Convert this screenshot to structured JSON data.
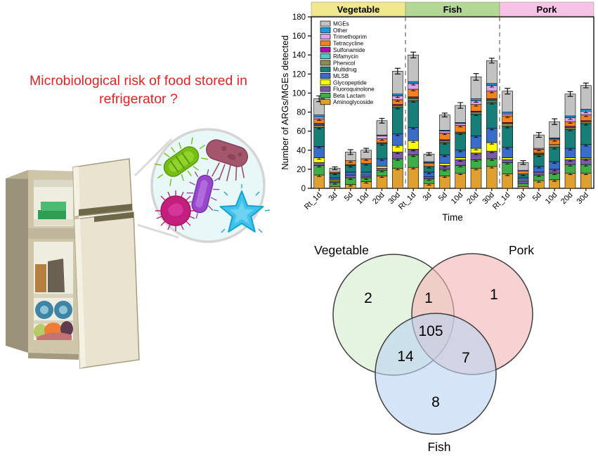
{
  "headline": {
    "text": "Microbiological risk of food stored in refrigerator ?",
    "color": "#E02424"
  },
  "illustration": {
    "items": [
      {
        "name": "refrigerator-illustration",
        "description": "two-door refrigerator with doors open showing stored food"
      },
      {
        "name": "magnifier-circle",
        "description": "zoom bubble showing microbes found in refrigerator"
      },
      {
        "name": "green-rod-bacterium"
      },
      {
        "name": "maroon-rod-bacterium"
      },
      {
        "name": "purple-rod-bacterium"
      },
      {
        "name": "magenta-coccus-bacterium"
      },
      {
        "name": "cyan-star-microbe"
      }
    ]
  },
  "chart_data": [
    {
      "type": "bar",
      "stacked": true,
      "title": "",
      "ylabel": "Number of ARGs/MGEs detected",
      "xlabel": "Time",
      "ylim": [
        0,
        180
      ],
      "yticks": [
        0,
        20,
        40,
        60,
        80,
        100,
        120,
        140,
        160,
        180
      ],
      "grid": false,
      "legend_position": "top-left-inside",
      "groups": [
        "Vegetable",
        "Fish",
        "Pork"
      ],
      "group_colors": [
        "#F0E88F",
        "#B3D895",
        "#F6C2E5"
      ],
      "categories": [
        "Rt_1d",
        "3d",
        "5d",
        "10d",
        "20d",
        "30d"
      ],
      "legend_order_top_to_bottom": [
        "MGEs",
        "Other",
        "Trimethoprim",
        "Tetracycline",
        "Sulfonamide",
        "Rifamycin",
        "Phenicol",
        "Multidrug",
        "MLSB",
        "Glycopeptide",
        "Fluoroquinolone",
        "Beta Lactam",
        "Aminoglycoside"
      ],
      "series": [
        {
          "name": "Aminoglycoside",
          "color": "#DFA02F",
          "values": {
            "Vegetable": [
              14,
              2,
              4,
              7,
              13,
              21
            ],
            "Fish": [
              22,
              5,
              13,
              16,
              21,
              23
            ],
            "Pork": [
              15,
              2,
              8,
              9,
              16,
              16
            ]
          }
        },
        {
          "name": "Beta Lactam",
          "color": "#3FAE49",
          "values": {
            "Vegetable": [
              10,
              4,
              7,
              4,
              6,
              10
            ],
            "Fish": [
              13,
              5,
              7,
              8,
              9,
              8
            ],
            "Pork": [
              12,
              3,
              6,
              7,
              9,
              9
            ]
          }
        },
        {
          "name": "Fluoroquinolone",
          "color": "#7B5BA8",
          "values": {
            "Vegetable": [
              3,
              2,
              3,
              2,
              2,
              7
            ],
            "Fish": [
              6,
              2,
              4,
              6,
              7,
              8
            ],
            "Pork": [
              3,
              2,
              3,
              4,
              5,
              6
            ]
          }
        },
        {
          "name": "Glycopeptide",
          "color": "#FFFF00",
          "values": {
            "Vegetable": [
              5,
              1,
              0,
              1,
              2,
              7
            ],
            "Fish": [
              9,
              0,
              2,
              2,
              5,
              9
            ],
            "Pork": [
              2,
              1,
              0,
              0,
              2,
              1
            ]
          }
        },
        {
          "name": "MLSB",
          "color": "#3A6CC9",
          "values": {
            "Vegetable": [
              12,
              2,
              3,
              3,
              8,
              12
            ],
            "Fish": [
              14,
              5,
              9,
              8,
              13,
              15
            ],
            "Pork": [
              11,
              3,
              6,
              8,
              10,
              14
            ]
          }
        },
        {
          "name": "Multidrug",
          "color": "#187F78",
          "values": {
            "Vegetable": [
              20,
              5,
              7,
              9,
              16,
              28
            ],
            "Fish": [
              28,
              6,
              13,
              18,
              23,
              27
            ],
            "Pork": [
              22,
              4,
              12,
              15,
              20,
              22
            ]
          }
        },
        {
          "name": "Phenicol",
          "color": "#8B8B55",
          "values": {
            "Vegetable": [
              2,
              0,
              1,
              0,
              1,
              2
            ],
            "Fish": [
              2,
              0,
              2,
              1,
              2,
              2
            ],
            "Pork": [
              3,
              0,
              1,
              3,
              2,
              2
            ]
          }
        },
        {
          "name": "Rifamycin",
          "color": "#5FC4C4",
          "values": {
            "Vegetable": [
              1,
              0,
              0,
              0,
              0,
              0
            ],
            "Fish": [
              1,
              0,
              0,
              0,
              0,
              1
            ],
            "Pork": [
              0,
              0,
              0,
              0,
              0,
              0
            ]
          }
        },
        {
          "name": "Sulfonamide",
          "color": "#A610A6",
          "values": {
            "Vegetable": [
              1,
              0,
              0,
              0,
              0,
              1
            ],
            "Fish": [
              1,
              0,
              1,
              0,
              1,
              1
            ],
            "Pork": [
              1,
              0,
              1,
              0,
              1,
              1
            ]
          }
        },
        {
          "name": "Tetracycline",
          "color": "#F5821F",
          "values": {
            "Vegetable": [
              5,
              1,
              4,
              5,
              4,
              5
            ],
            "Fish": [
              8,
              3,
              7,
              7,
              7,
              8
            ],
            "Pork": [
              7,
              3,
              4,
              5,
              5,
              6
            ]
          }
        },
        {
          "name": "Trimethoprim",
          "color": "#D9A7E8",
          "values": {
            "Vegetable": [
              2,
              0,
              0,
              0,
              3,
              4
            ],
            "Fish": [
              6,
              1,
              2,
              2,
              4,
              6
            ],
            "Pork": [
              2,
              1,
              1,
              1,
              4,
              4
            ]
          }
        },
        {
          "name": "Other",
          "color": "#1E9BE0",
          "values": {
            "Vegetable": [
              2,
              0,
              0,
              0,
              1,
              2
            ],
            "Fish": [
              2,
              1,
              1,
              1,
              2,
              2
            ],
            "Pork": [
              2,
              0,
              0,
              1,
              2,
              2
            ]
          }
        },
        {
          "name": "MGEs",
          "color": "#C2C2C2",
          "values": {
            "Vegetable": [
              17,
              4,
              9,
              9,
              15,
              24
            ],
            "Fish": [
              28,
              8,
              16,
              18,
              23,
              24
            ],
            "Pork": [
              22,
              8,
              14,
              17,
              23,
              25
            ]
          }
        }
      ],
      "totals": {
        "Vegetable": [
          94,
          21,
          38,
          40,
          71,
          123
        ],
        "Fish": [
          140,
          36,
          77,
          87,
          117,
          134
        ],
        "Pork": [
          102,
          27,
          56,
          70,
          99,
          108
        ]
      },
      "errors": {
        "Vegetable": [
          3,
          1.5,
          2.5,
          2,
          2.5,
          3
        ],
        "Fish": [
          3,
          1.5,
          2,
          3,
          3.5,
          2.5
        ],
        "Pork": [
          3,
          2,
          2.5,
          3,
          2.5,
          2.5
        ]
      }
    },
    {
      "type": "venn",
      "sets": [
        "Vegetable",
        "Pork",
        "Fish"
      ],
      "set_colors": {
        "Vegetable": "#D5EDCF",
        "Pork": "#F3B6B6",
        "Fish": "#BCD3F1"
      },
      "values": {
        "vegetable_only": 2,
        "pork_only": 1,
        "fish_only": 8,
        "vegetable_pork": 1,
        "vegetable_fish": 14,
        "pork_fish": 7,
        "vegetable_pork_fish": 105
      }
    }
  ]
}
